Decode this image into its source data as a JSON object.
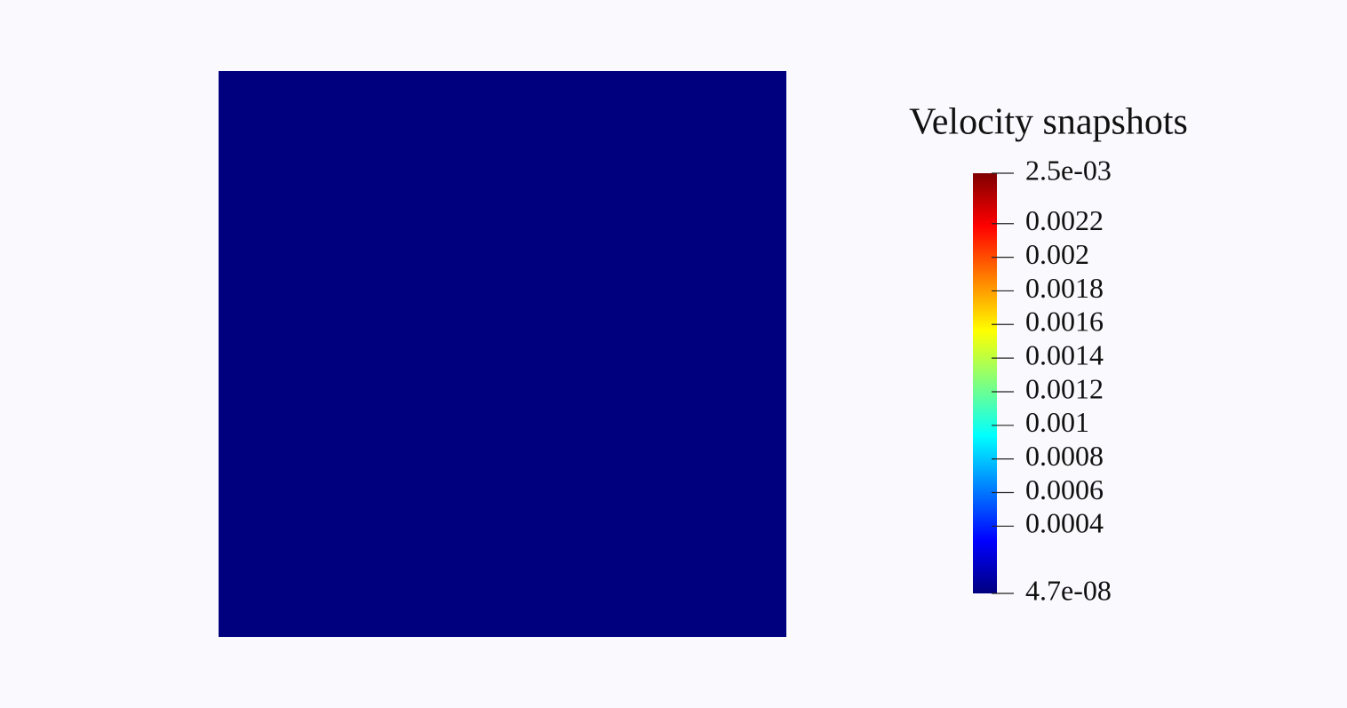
{
  "chart_data": {
    "type": "heatmap",
    "title": "Velocity snapshots",
    "colormap": [
      "#00007f",
      "#0000ff",
      "#007fff",
      "#00ffff",
      "#7fff7f",
      "#ffff00",
      "#ff7f00",
      "#ff0000",
      "#7f0000"
    ],
    "clim": [
      4.7e-08,
      0.0025
    ],
    "cticks": [
      {
        "value": 0.0025,
        "label": "2.5e-03"
      },
      0.0022,
      0.002,
      0.0018,
      0.0016,
      0.0014,
      0.0012,
      0.001,
      0.0008,
      0.0006,
      0.0004,
      {
        "value": 4.7e-08,
        "label": "4.7e-08"
      }
    ]
  }
}
